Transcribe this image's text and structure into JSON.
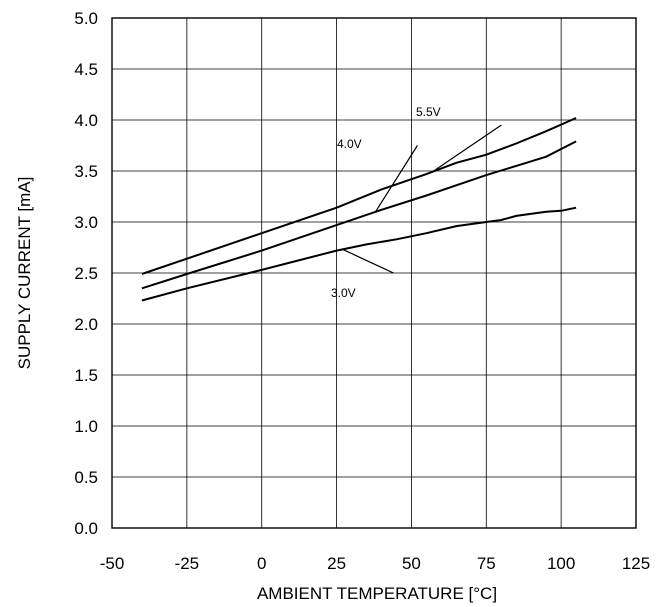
{
  "chart_data": {
    "type": "line",
    "xlabel": "AMBIENT TEMPERATURE [°C]",
    "ylabel": "SUPPLY CURRENT [mA]",
    "xlim": [
      -50,
      125
    ],
    "ylim": [
      0,
      5
    ],
    "x_ticks": [
      "-50",
      "-25",
      "0",
      "25",
      "50",
      "75",
      "100",
      "125"
    ],
    "y_ticks": [
      "0.0",
      "0.5",
      "1.0",
      "1.5",
      "2.0",
      "2.5",
      "3.0",
      "3.5",
      "4.0",
      "4.5",
      "5.0"
    ],
    "grid": true,
    "legend": "none",
    "series": [
      {
        "name": "5.5V",
        "x": [
          -40,
          -25,
          0,
          25,
          40,
          55,
          65,
          75,
          85,
          95,
          105
        ],
        "values": [
          2.49,
          2.64,
          2.89,
          3.14,
          3.32,
          3.47,
          3.58,
          3.66,
          3.77,
          3.89,
          4.02
        ]
      },
      {
        "name": "4.0V",
        "x": [
          -40,
          -25,
          0,
          25,
          40,
          55,
          65,
          75,
          85,
          95,
          105
        ],
        "values": [
          2.35,
          2.49,
          2.72,
          2.97,
          3.12,
          3.26,
          3.36,
          3.46,
          3.55,
          3.64,
          3.79
        ]
      },
      {
        "name": "3.0V",
        "x": [
          -40,
          -25,
          0,
          25,
          35,
          45,
          55,
          65,
          75,
          80,
          85,
          95,
          100,
          105
        ],
        "values": [
          2.23,
          2.35,
          2.53,
          2.72,
          2.78,
          2.83,
          2.89,
          2.96,
          3.0,
          3.02,
          3.06,
          3.1,
          3.11,
          3.14
        ]
      }
    ]
  }
}
